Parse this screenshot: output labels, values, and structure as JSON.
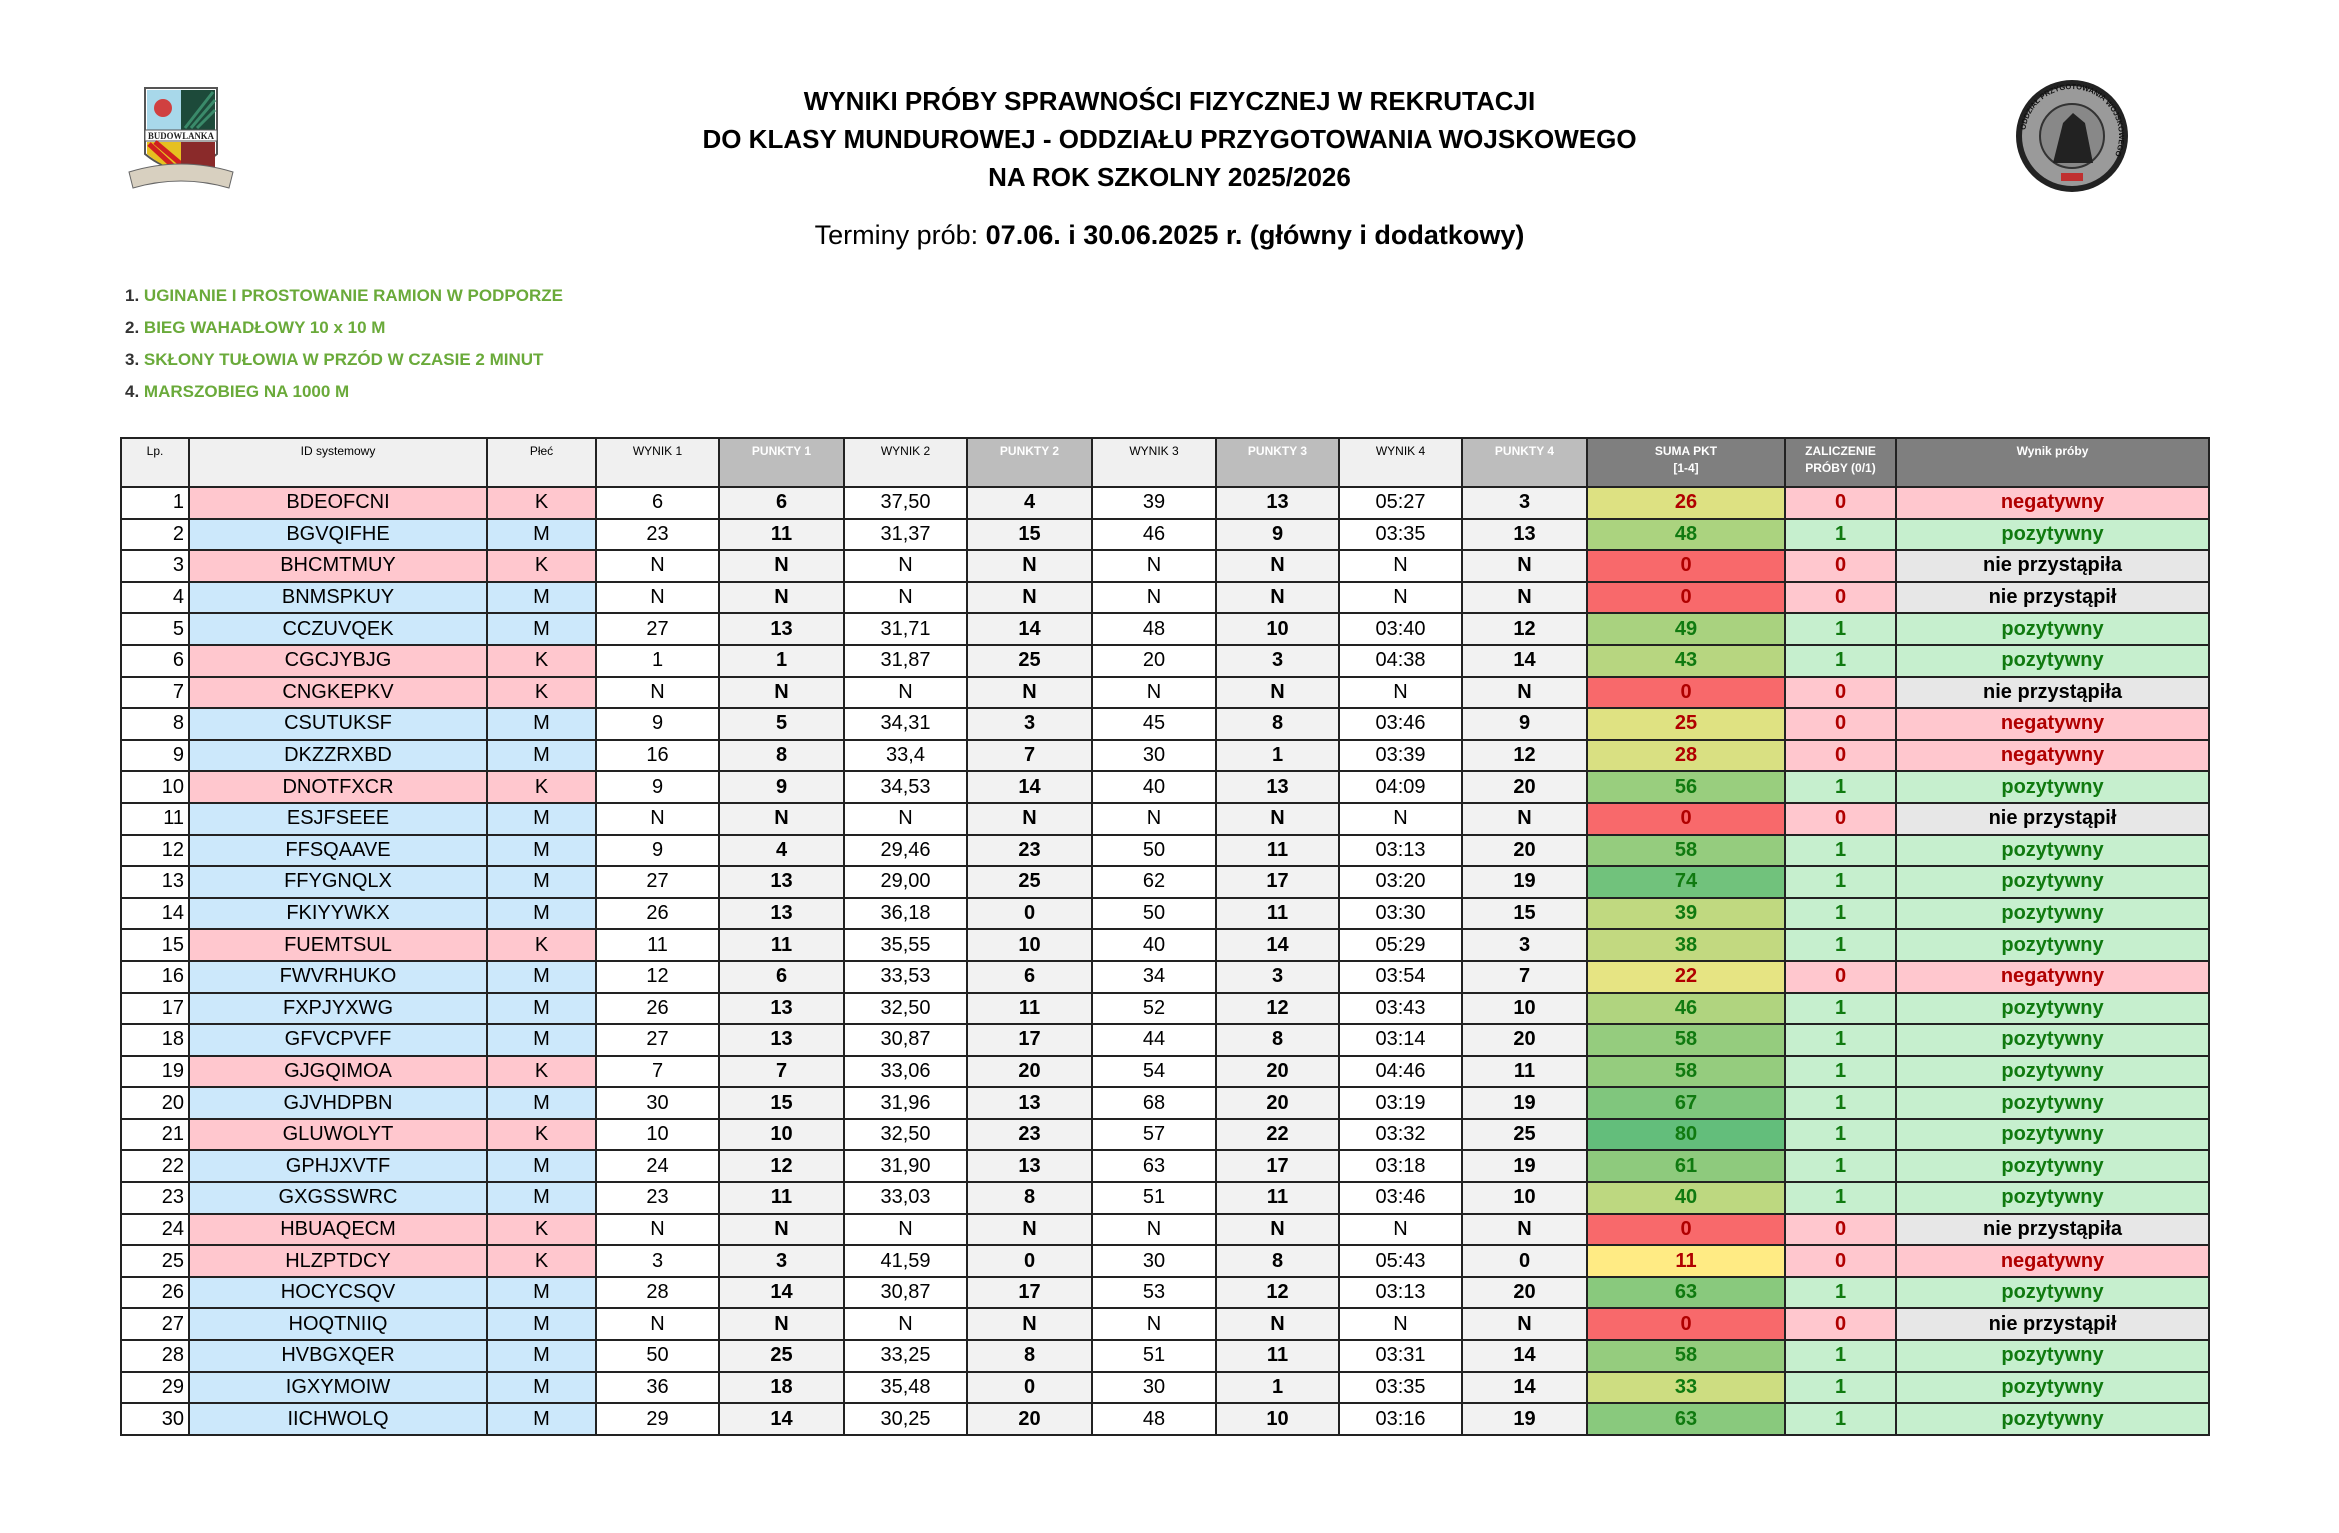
{
  "header": {
    "title_lines": [
      "WYNIKI PRÓBY SPRAWNOŚCI FIZYCZNEJ W REKRUTACJI",
      "DO KLASY MUNDUROWEJ - ODDZIAŁU PRZYGOTOWANIA WOJSKOWEGO",
      "NA ROK SZKOLNY 2025/2026"
    ],
    "terms_label": "Terminy prób: ",
    "terms_value": "07.06. i 30.06.2025 r. (główny i dodatkowy)",
    "left_logo_text": "BUDOWLANKA",
    "right_logo_text": "ODDZIAŁ PRZYGOTOWANIA WOJSKOWEGO"
  },
  "tests": [
    {
      "num": "1.",
      "label": "UGINANIE I PROSTOWANIE RAMION W PODPORZE"
    },
    {
      "num": "2.",
      "label": "BIEG WAHADŁOWY 10 x 10 M"
    },
    {
      "num": "3.",
      "label": "SKŁONY TUŁOWIA W PRZÓD W CZASIE 2 MINUT"
    },
    {
      "num": "4.",
      "label": "MARSZOBIEG NA 1000 M"
    }
  ],
  "colors": {
    "female": "#ffc7ce",
    "male": "#cce8fb",
    "pass": "#c6efce",
    "fail": "#ffc7ce",
    "absent": "#e7e7e7",
    "scale_min": "#f8696b",
    "scale_mid": "#ffeb84",
    "scale_max": "#63be7b"
  },
  "table": {
    "columns": [
      "Lp.",
      "ID systemowy",
      "Płeć",
      "WYNIK 1",
      "PUNKTY 1",
      "WYNIK 2",
      "PUNKTY 2",
      "WYNIK 3",
      "PUNKTY 3",
      "WYNIK 4",
      "PUNKTY 4",
      "SUMA PKT\n[1-4]",
      "ZALICZENIE\nPRÓBY (0/1)",
      "Wynik próby"
    ],
    "rows": [
      [
        "1",
        "BDEOFCNI",
        "K",
        "6",
        "6",
        "37,50",
        "4",
        "39",
        "13",
        "05:27",
        "3",
        "26",
        "0",
        "negatywny"
      ],
      [
        "2",
        "BGVQIFHE",
        "M",
        "23",
        "11",
        "31,37",
        "15",
        "46",
        "9",
        "03:35",
        "13",
        "48",
        "1",
        "pozytywny"
      ],
      [
        "3",
        "BHCMTMUY",
        "K",
        "N",
        "N",
        "N",
        "N",
        "N",
        "N",
        "N",
        "N",
        "0",
        "0",
        "nie przystąpiła"
      ],
      [
        "4",
        "BNMSPKUY",
        "M",
        "N",
        "N",
        "N",
        "N",
        "N",
        "N",
        "N",
        "N",
        "0",
        "0",
        "nie przystąpił"
      ],
      [
        "5",
        "CCZUVQEK",
        "M",
        "27",
        "13",
        "31,71",
        "14",
        "48",
        "10",
        "03:40",
        "12",
        "49",
        "1",
        "pozytywny"
      ],
      [
        "6",
        "CGCJYBJG",
        "K",
        "1",
        "1",
        "31,87",
        "25",
        "20",
        "3",
        "04:38",
        "14",
        "43",
        "1",
        "pozytywny"
      ],
      [
        "7",
        "CNGKEPKV",
        "K",
        "N",
        "N",
        "N",
        "N",
        "N",
        "N",
        "N",
        "N",
        "0",
        "0",
        "nie przystąpiła"
      ],
      [
        "8",
        "CSUTUKSF",
        "M",
        "9",
        "5",
        "34,31",
        "3",
        "45",
        "8",
        "03:46",
        "9",
        "25",
        "0",
        "negatywny"
      ],
      [
        "9",
        "DKZZRXBD",
        "M",
        "16",
        "8",
        "33,4",
        "7",
        "30",
        "1",
        "03:39",
        "12",
        "28",
        "0",
        "negatywny"
      ],
      [
        "10",
        "DNOTFXCR",
        "K",
        "9",
        "9",
        "34,53",
        "14",
        "40",
        "13",
        "04:09",
        "20",
        "56",
        "1",
        "pozytywny"
      ],
      [
        "11",
        "ESJFSEEE",
        "M",
        "N",
        "N",
        "N",
        "N",
        "N",
        "N",
        "N",
        "N",
        "0",
        "0",
        "nie przystąpił"
      ],
      [
        "12",
        "FFSQAAVE",
        "M",
        "9",
        "4",
        "29,46",
        "23",
        "50",
        "11",
        "03:13",
        "20",
        "58",
        "1",
        "pozytywny"
      ],
      [
        "13",
        "FFYGNQLX",
        "M",
        "27",
        "13",
        "29,00",
        "25",
        "62",
        "17",
        "03:20",
        "19",
        "74",
        "1",
        "pozytywny"
      ],
      [
        "14",
        "FKIYYWKX",
        "M",
        "26",
        "13",
        "36,18",
        "0",
        "50",
        "11",
        "03:30",
        "15",
        "39",
        "1",
        "pozytywny"
      ],
      [
        "15",
        "FUEMTSUL",
        "K",
        "11",
        "11",
        "35,55",
        "10",
        "40",
        "14",
        "05:29",
        "3",
        "38",
        "1",
        "pozytywny"
      ],
      [
        "16",
        "FWVRHUKO",
        "M",
        "12",
        "6",
        "33,53",
        "6",
        "34",
        "3",
        "03:54",
        "7",
        "22",
        "0",
        "negatywny"
      ],
      [
        "17",
        "FXPJYXWG",
        "M",
        "26",
        "13",
        "32,50",
        "11",
        "52",
        "12",
        "03:43",
        "10",
        "46",
        "1",
        "pozytywny"
      ],
      [
        "18",
        "GFVCPVFF",
        "M",
        "27",
        "13",
        "30,87",
        "17",
        "44",
        "8",
        "03:14",
        "20",
        "58",
        "1",
        "pozytywny"
      ],
      [
        "19",
        "GJGQIMOA",
        "K",
        "7",
        "7",
        "33,06",
        "20",
        "54",
        "20",
        "04:46",
        "11",
        "58",
        "1",
        "pozytywny"
      ],
      [
        "20",
        "GJVHDPBN",
        "M",
        "30",
        "15",
        "31,96",
        "13",
        "68",
        "20",
        "03:19",
        "19",
        "67",
        "1",
        "pozytywny"
      ],
      [
        "21",
        "GLUWOLYT",
        "K",
        "10",
        "10",
        "32,50",
        "23",
        "57",
        "22",
        "03:32",
        "25",
        "80",
        "1",
        "pozytywny"
      ],
      [
        "22",
        "GPHJXVTF",
        "M",
        "24",
        "12",
        "31,90",
        "13",
        "63",
        "17",
        "03:18",
        "19",
        "61",
        "1",
        "pozytywny"
      ],
      [
        "23",
        "GXGSSWRC",
        "M",
        "23",
        "11",
        "33,03",
        "8",
        "51",
        "11",
        "03:46",
        "10",
        "40",
        "1",
        "pozytywny"
      ],
      [
        "24",
        "HBUAQECM",
        "K",
        "N",
        "N",
        "N",
        "N",
        "N",
        "N",
        "N",
        "N",
        "0",
        "0",
        "nie przystąpiła"
      ],
      [
        "25",
        "HLZPTDCY",
        "K",
        "3",
        "3",
        "41,59",
        "0",
        "30",
        "8",
        "05:43",
        "0",
        "11",
        "0",
        "negatywny"
      ],
      [
        "26",
        "HOCYCSQV",
        "M",
        "28",
        "14",
        "30,87",
        "17",
        "53",
        "12",
        "03:13",
        "20",
        "63",
        "1",
        "pozytywny"
      ],
      [
        "27",
        "HOQTNIIQ",
        "M",
        "N",
        "N",
        "N",
        "N",
        "N",
        "N",
        "N",
        "N",
        "0",
        "0",
        "nie przystąpił"
      ],
      [
        "28",
        "HVBGXQER",
        "M",
        "50",
        "25",
        "33,25",
        "8",
        "51",
        "11",
        "03:31",
        "14",
        "58",
        "1",
        "pozytywny"
      ],
      [
        "29",
        "IGXYMOIW",
        "M",
        "36",
        "18",
        "35,48",
        "0",
        "30",
        "1",
        "03:35",
        "14",
        "33",
        "1",
        "pozytywny"
      ],
      [
        "30",
        "IICHWOLQ",
        "M",
        "29",
        "14",
        "30,25",
        "20",
        "48",
        "10",
        "03:16",
        "19",
        "63",
        "1",
        "pozytywny"
      ]
    ]
  }
}
